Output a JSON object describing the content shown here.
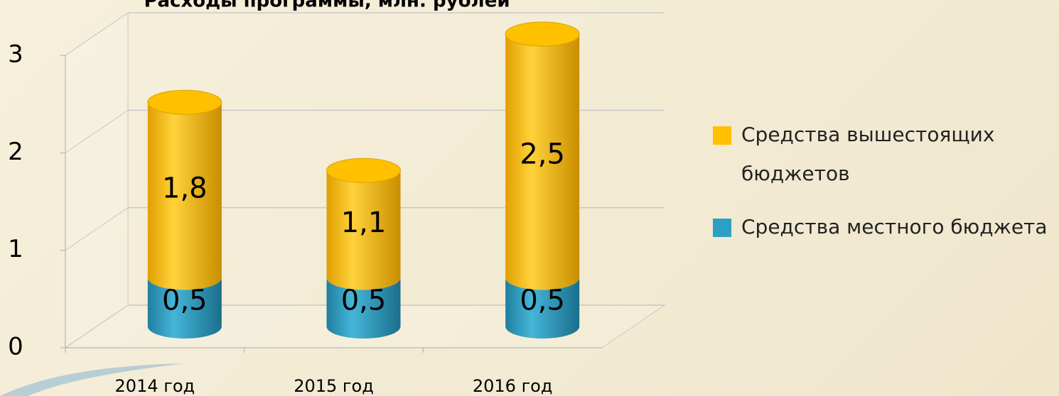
{
  "chart_data": {
    "type": "bar3d-stacked",
    "title": "Расходы программы, млн. рублей",
    "categories": [
      "2014 год",
      "2015 год",
      "2016 год"
    ],
    "series": [
      {
        "name": "Средства местного бюджета",
        "color": "#2e9fc4",
        "values": [
          0.5,
          0.5,
          0.5
        ],
        "value_labels": [
          "0,5",
          "0,5",
          "0,5"
        ]
      },
      {
        "name": "Средства вышестоящих бюджетов",
        "color": "#ffc000",
        "values": [
          1.8,
          1.1,
          2.5
        ],
        "value_labels": [
          "1,8",
          "1,1",
          "2,5"
        ]
      }
    ],
    "ylim": [
      0,
      3
    ],
    "yticks": [
      0,
      1,
      2,
      3
    ],
    "grid": true
  }
}
